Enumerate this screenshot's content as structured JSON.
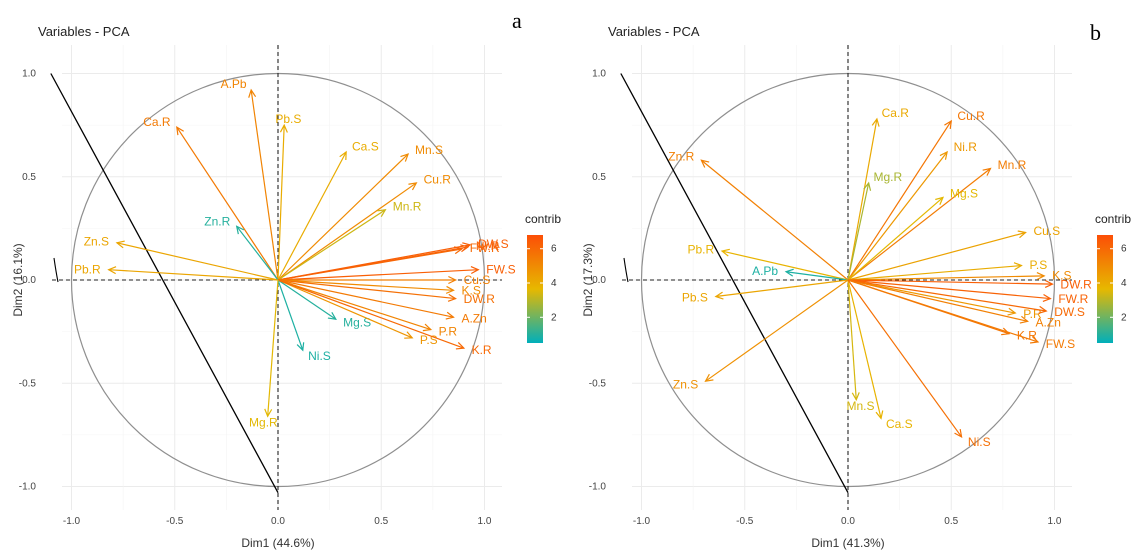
{
  "chart_data": [
    {
      "type": "pca-variable-correlation-circle",
      "panel_label": "a",
      "title": "Variables - PCA",
      "xlabel": "Dim1 (44.6%)",
      "ylabel": "Dim2 (16.1%)",
      "xlim": [
        -1.1,
        1.1
      ],
      "ylim": [
        -1.05,
        1.05
      ],
      "x_ticks": [
        "-1.0",
        "-0.5",
        "0.0",
        "0.5",
        "1.0"
      ],
      "y_ticks": [
        "1.0",
        "0.5",
        "0.0",
        "-0.5",
        "-1.0"
      ],
      "grid": true,
      "legend": {
        "title": "contrib",
        "ticks": [
          "6",
          "4",
          "2"
        ],
        "range": [
          0.5,
          6.8
        ],
        "placement": "right"
      },
      "color_scale": [
        "#00AFBB",
        "#E7B800",
        "#FC4E07"
      ],
      "line": {
        "x": [
          -1.1,
          0.0
        ],
        "y": [
          1.0,
          -1.03
        ]
      },
      "variables": [
        {
          "name": "A.Pb",
          "x": -0.13,
          "y": 0.92,
          "contrib": 5.2
        },
        {
          "name": "Ca.R",
          "x": -0.49,
          "y": 0.74,
          "contrib": 5.5
        },
        {
          "name": "Pb.S",
          "x": 0.03,
          "y": 0.75,
          "contrib": 4.0
        },
        {
          "name": "Ca.S",
          "x": 0.33,
          "y": 0.62,
          "contrib": 4.0
        },
        {
          "name": "Mn.S",
          "x": 0.63,
          "y": 0.61,
          "contrib": 5.0
        },
        {
          "name": "Cu.R",
          "x": 0.67,
          "y": 0.47,
          "contrib": 5.0
        },
        {
          "name": "Mn.R",
          "x": 0.52,
          "y": 0.34,
          "contrib": 3.3
        },
        {
          "name": "Zn.S",
          "x": -0.78,
          "y": 0.18,
          "contrib": 4.2
        },
        {
          "name": "Zn.R",
          "x": -0.2,
          "y": 0.26,
          "contrib": 1.0
        },
        {
          "name": "FW.R",
          "x": 0.89,
          "y": 0.15,
          "contrib": 6.0
        },
        {
          "name": "Ni.R",
          "x": 0.92,
          "y": 0.16,
          "contrib": 6.2
        },
        {
          "name": "DW.S",
          "x": 0.93,
          "y": 0.17,
          "contrib": 6.3
        },
        {
          "name": "FW.S",
          "x": 0.97,
          "y": 0.05,
          "contrib": 6.3
        },
        {
          "name": "Pb.R",
          "x": -0.82,
          "y": 0.05,
          "contrib": 4.2
        },
        {
          "name": "Cu.S",
          "x": 0.86,
          "y": 0.0,
          "contrib": 5.3
        },
        {
          "name": "K.S",
          "x": 0.85,
          "y": -0.05,
          "contrib": 5.0
        },
        {
          "name": "DW.R",
          "x": 0.86,
          "y": -0.09,
          "contrib": 5.8
        },
        {
          "name": "A.Zn",
          "x": 0.85,
          "y": -0.18,
          "contrib": 5.5
        },
        {
          "name": "Mg.S",
          "x": 0.28,
          "y": -0.19,
          "contrib": 1.0
        },
        {
          "name": "P.R",
          "x": 0.74,
          "y": -0.24,
          "contrib": 5.2
        },
        {
          "name": "P.S",
          "x": 0.65,
          "y": -0.28,
          "contrib": 4.7
        },
        {
          "name": "K.R",
          "x": 0.9,
          "y": -0.33,
          "contrib": 6.0
        },
        {
          "name": "Ni.S",
          "x": 0.12,
          "y": -0.34,
          "contrib": 0.9
        },
        {
          "name": "Mg.R",
          "x": -0.05,
          "y": -0.66,
          "contrib": 3.6
        }
      ]
    },
    {
      "type": "pca-variable-correlation-circle",
      "panel_label": "b",
      "title": "Variables - PCA",
      "xlabel": "Dim1 (41.3%)",
      "ylabel": "Dim2 (17.3%)",
      "xlim": [
        -1.1,
        1.1
      ],
      "ylim": [
        -1.05,
        1.05
      ],
      "x_ticks": [
        "-1.0",
        "-0.5",
        "0.0",
        "0.5",
        "1.0"
      ],
      "y_ticks": [
        "1.0",
        "0.5",
        "0.0",
        "-0.5",
        "-1.0"
      ],
      "grid": true,
      "legend": {
        "title": "contrib",
        "ticks": [
          "6",
          "4",
          "2"
        ],
        "range": [
          0.5,
          6.8
        ],
        "placement": "right"
      },
      "color_scale": [
        "#00AFBB",
        "#E7B800",
        "#FC4E07"
      ],
      "line": {
        "x": [
          -1.1,
          0.0
        ],
        "y": [
          1.0,
          -1.03
        ]
      },
      "variables": [
        {
          "name": "Ca.R",
          "x": 0.14,
          "y": 0.78,
          "contrib": 4.1
        },
        {
          "name": "Cu.R",
          "x": 0.5,
          "y": 0.77,
          "contrib": 5.6
        },
        {
          "name": "Ni.R",
          "x": 0.48,
          "y": 0.62,
          "contrib": 4.6
        },
        {
          "name": "Mn.R",
          "x": 0.69,
          "y": 0.54,
          "contrib": 5.4
        },
        {
          "name": "Zn.R",
          "x": -0.71,
          "y": 0.58,
          "contrib": 5.3
        },
        {
          "name": "Mg.R",
          "x": 0.1,
          "y": 0.47,
          "contrib": 2.8
        },
        {
          "name": "Mg.S",
          "x": 0.46,
          "y": 0.4,
          "contrib": 3.6
        },
        {
          "name": "Cu.S",
          "x": 0.86,
          "y": 0.23,
          "contrib": 4.3
        },
        {
          "name": "P.S",
          "x": 0.84,
          "y": 0.07,
          "contrib": 4.0
        },
        {
          "name": "K.S",
          "x": 0.95,
          "y": 0.02,
          "contrib": 5.0
        },
        {
          "name": "DW.R",
          "x": 0.99,
          "y": -0.02,
          "contrib": 6.3
        },
        {
          "name": "Pb.R",
          "x": -0.61,
          "y": 0.14,
          "contrib": 3.8
        },
        {
          "name": "A.Pb",
          "x": -0.3,
          "y": 0.04,
          "contrib": 0.9
        },
        {
          "name": "Pb.S",
          "x": -0.64,
          "y": -0.08,
          "contrib": 4.2
        },
        {
          "name": "FW.R",
          "x": 0.98,
          "y": -0.09,
          "contrib": 6.2
        },
        {
          "name": "P.R",
          "x": 0.81,
          "y": -0.16,
          "contrib": 4.6
        },
        {
          "name": "A.Zn",
          "x": 0.87,
          "y": -0.2,
          "contrib": 5.3
        },
        {
          "name": "DW.S",
          "x": 0.96,
          "y": -0.15,
          "contrib": 6.0
        },
        {
          "name": "K.R",
          "x": 0.78,
          "y": -0.26,
          "contrib": 5.6
        },
        {
          "name": "FW.S",
          "x": 0.92,
          "y": -0.3,
          "contrib": 5.5
        },
        {
          "name": "Zn.S",
          "x": -0.69,
          "y": -0.49,
          "contrib": 4.8
        },
        {
          "name": "Mn.S",
          "x": 0.04,
          "y": -0.58,
          "contrib": 3.4
        },
        {
          "name": "Ca.S",
          "x": 0.16,
          "y": -0.67,
          "contrib": 3.8
        },
        {
          "name": "Ni.S",
          "x": 0.55,
          "y": -0.76,
          "contrib": 5.8
        }
      ]
    }
  ]
}
